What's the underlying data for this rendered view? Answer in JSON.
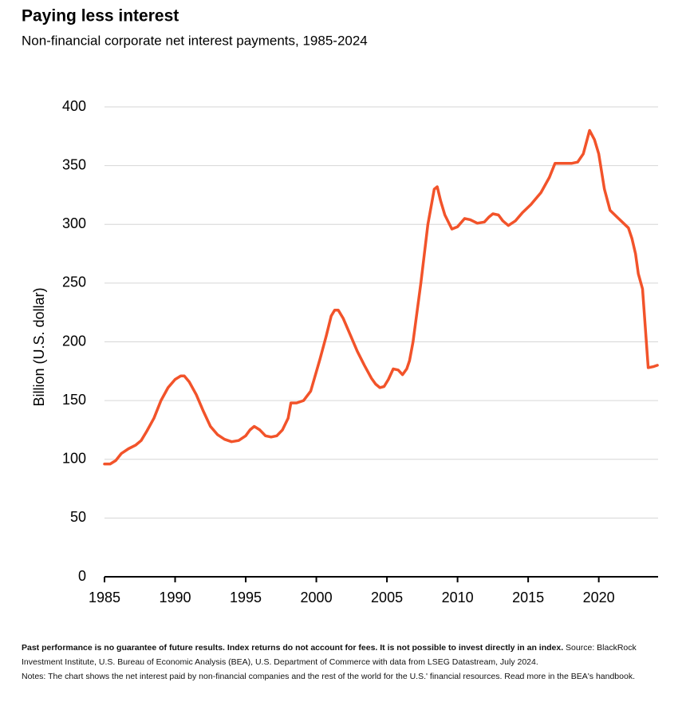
{
  "chart_data": {
    "type": "line",
    "title": "Paying less interest",
    "subtitle": "Non-financial corporate net interest payments, 1985-2024",
    "y_label": "Billion (U.S. dollar)",
    "x": [
      1985,
      1985.4,
      1985.8,
      1986.2,
      1986.7,
      1987.2,
      1987.6,
      1988,
      1988.5,
      1989,
      1989.5,
      1990,
      1990.4,
      1990.65,
      1991,
      1991.5,
      1992,
      1992.5,
      1993,
      1993.5,
      1994,
      1994.5,
      1995,
      1995.3,
      1995.6,
      1996,
      1996.4,
      1996.8,
      1997.2,
      1997.6,
      1998,
      1998.2,
      1998.6,
      1999.1,
      1999.6,
      2000.25,
      2000.7,
      2001.05,
      2001.3,
      2001.55,
      2001.9,
      2002.4,
      2002.9,
      2003.4,
      2003.9,
      2004.2,
      2004.5,
      2004.8,
      2005.1,
      2005.45,
      2005.8,
      2006.1,
      2006.4,
      2006.6,
      2006.85,
      2007.4,
      2007.9,
      2008.35,
      2008.56,
      2008.8,
      2009.1,
      2009.6,
      2010.0,
      2010.5,
      2010.9,
      2011.4,
      2011.9,
      2012.2,
      2012.5,
      2012.9,
      2013.2,
      2013.6,
      2014.1,
      2014.6,
      2015.2,
      2015.9,
      2016.5,
      2016.9,
      2017.5,
      2018.1,
      2018.5,
      2018.9,
      2019.35,
      2019.7,
      2020.0,
      2020.4,
      2020.8,
      2021.4,
      2022.1,
      2022.35,
      2022.6,
      2022.8,
      2023.1,
      2023.5,
      2023.9,
      2024.15
    ],
    "series": [
      {
        "color": "#f2532a",
        "values": [
          96,
          96,
          99,
          105,
          109,
          112,
          116,
          124,
          135,
          150,
          161,
          168,
          171,
          171,
          166,
          155,
          141,
          128,
          121,
          117,
          115,
          116,
          120,
          125,
          128,
          125,
          120,
          119,
          120,
          125,
          135,
          148,
          148,
          150,
          158,
          185,
          205,
          222,
          227,
          227,
          220,
          206,
          192,
          180,
          169,
          164,
          161,
          162,
          168,
          177,
          176,
          172,
          177,
          184,
          200,
          250,
          300,
          330,
          332,
          320,
          308,
          296,
          298,
          305,
          304,
          301,
          302,
          306,
          309,
          308,
          303,
          299,
          303,
          310,
          317,
          327,
          340,
          352,
          352,
          352,
          353,
          360,
          380,
          372,
          360,
          330,
          312,
          305,
          297,
          288,
          275,
          258,
          245,
          178,
          179,
          180
        ]
      }
    ],
    "xlim": [
      1985,
      2024.2
    ],
    "xticks": [
      1985,
      1990,
      1995,
      2000,
      2005,
      2010,
      2015,
      2020
    ],
    "ylim": [
      0,
      400
    ],
    "yticks": [
      0,
      50,
      100,
      150,
      200,
      250,
      300,
      350,
      400
    ],
    "grid": true
  },
  "footnote": {
    "bold": "Past performance is no guarantee of future results. Index returns do not account for fees. It is not possible to invest directly in an index.",
    "source": " Source: BlackRock Investment Institute, U.S. Bureau of Economic Analysis (BEA), U.S. Department of Commerce with data from LSEG Datastream, July 2024.",
    "notes": "Notes: The chart shows the net interest paid by non-financial companies and the rest of the world for the U.S.' financial resources. Read more in the BEA's handbook."
  }
}
